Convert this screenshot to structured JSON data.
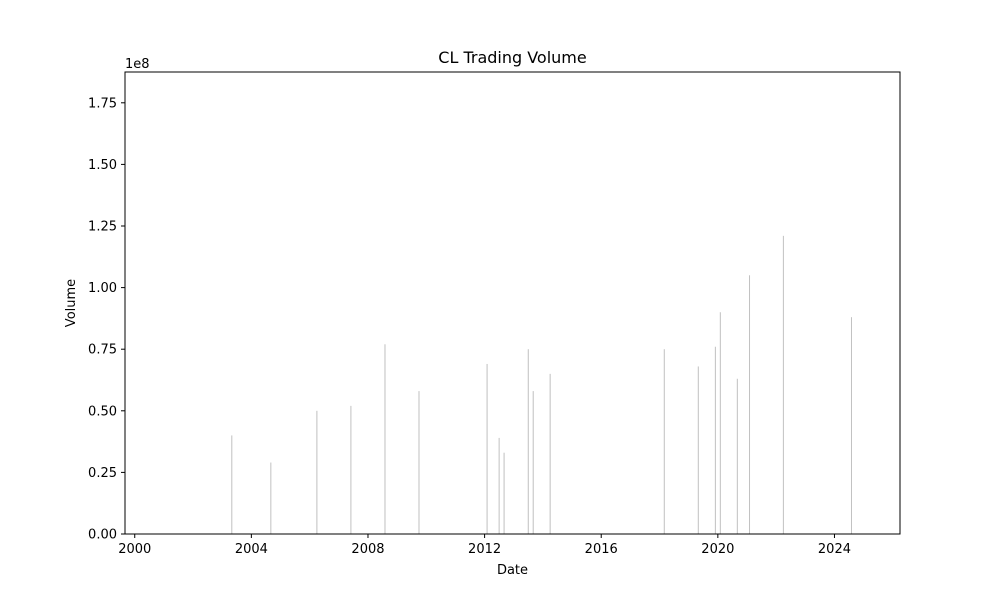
{
  "chart_data": {
    "type": "bar",
    "title": "CL Trading Volume",
    "xlabel": "Date",
    "ylabel": "Volume",
    "y_multiplier_label": "1e8",
    "y_multiplier": 100000000,
    "xlim": [
      "1999-09-01",
      "2026-04-01"
    ],
    "ylim": [
      0,
      1.875
    ],
    "x_ticks": [
      "2000",
      "2004",
      "2008",
      "2012",
      "2016",
      "2020",
      "2024"
    ],
    "y_ticks": [
      "0.00",
      "0.25",
      "0.50",
      "0.75",
      "1.00",
      "1.25",
      "1.50",
      "1.75"
    ],
    "grid": false,
    "bar_color": "#c0c0c0",
    "points": [
      {
        "date": "2003-05-01",
        "value": 0.4
      },
      {
        "date": "2004-09-01",
        "value": 0.29
      },
      {
        "date": "2006-04-01",
        "value": 0.5
      },
      {
        "date": "2007-06-01",
        "value": 0.52
      },
      {
        "date": "2008-08-01",
        "value": 0.77
      },
      {
        "date": "2009-10-01",
        "value": 0.58
      },
      {
        "date": "2012-02-01",
        "value": 0.69
      },
      {
        "date": "2012-07-01",
        "value": 0.39
      },
      {
        "date": "2012-09-01",
        "value": 0.33
      },
      {
        "date": "2013-07-01",
        "value": 0.75
      },
      {
        "date": "2013-09-01",
        "value": 0.58
      },
      {
        "date": "2014-04-01",
        "value": 0.65
      },
      {
        "date": "2018-03-01",
        "value": 0.75
      },
      {
        "date": "2019-05-01",
        "value": 0.68
      },
      {
        "date": "2019-12-01",
        "value": 0.76
      },
      {
        "date": "2020-02-01",
        "value": 0.9
      },
      {
        "date": "2020-09-01",
        "value": 0.63
      },
      {
        "date": "2021-02-01",
        "value": 1.05
      },
      {
        "date": "2022-04-01",
        "value": 1.21
      },
      {
        "date": "2024-08-01",
        "value": 0.88
      }
    ]
  }
}
